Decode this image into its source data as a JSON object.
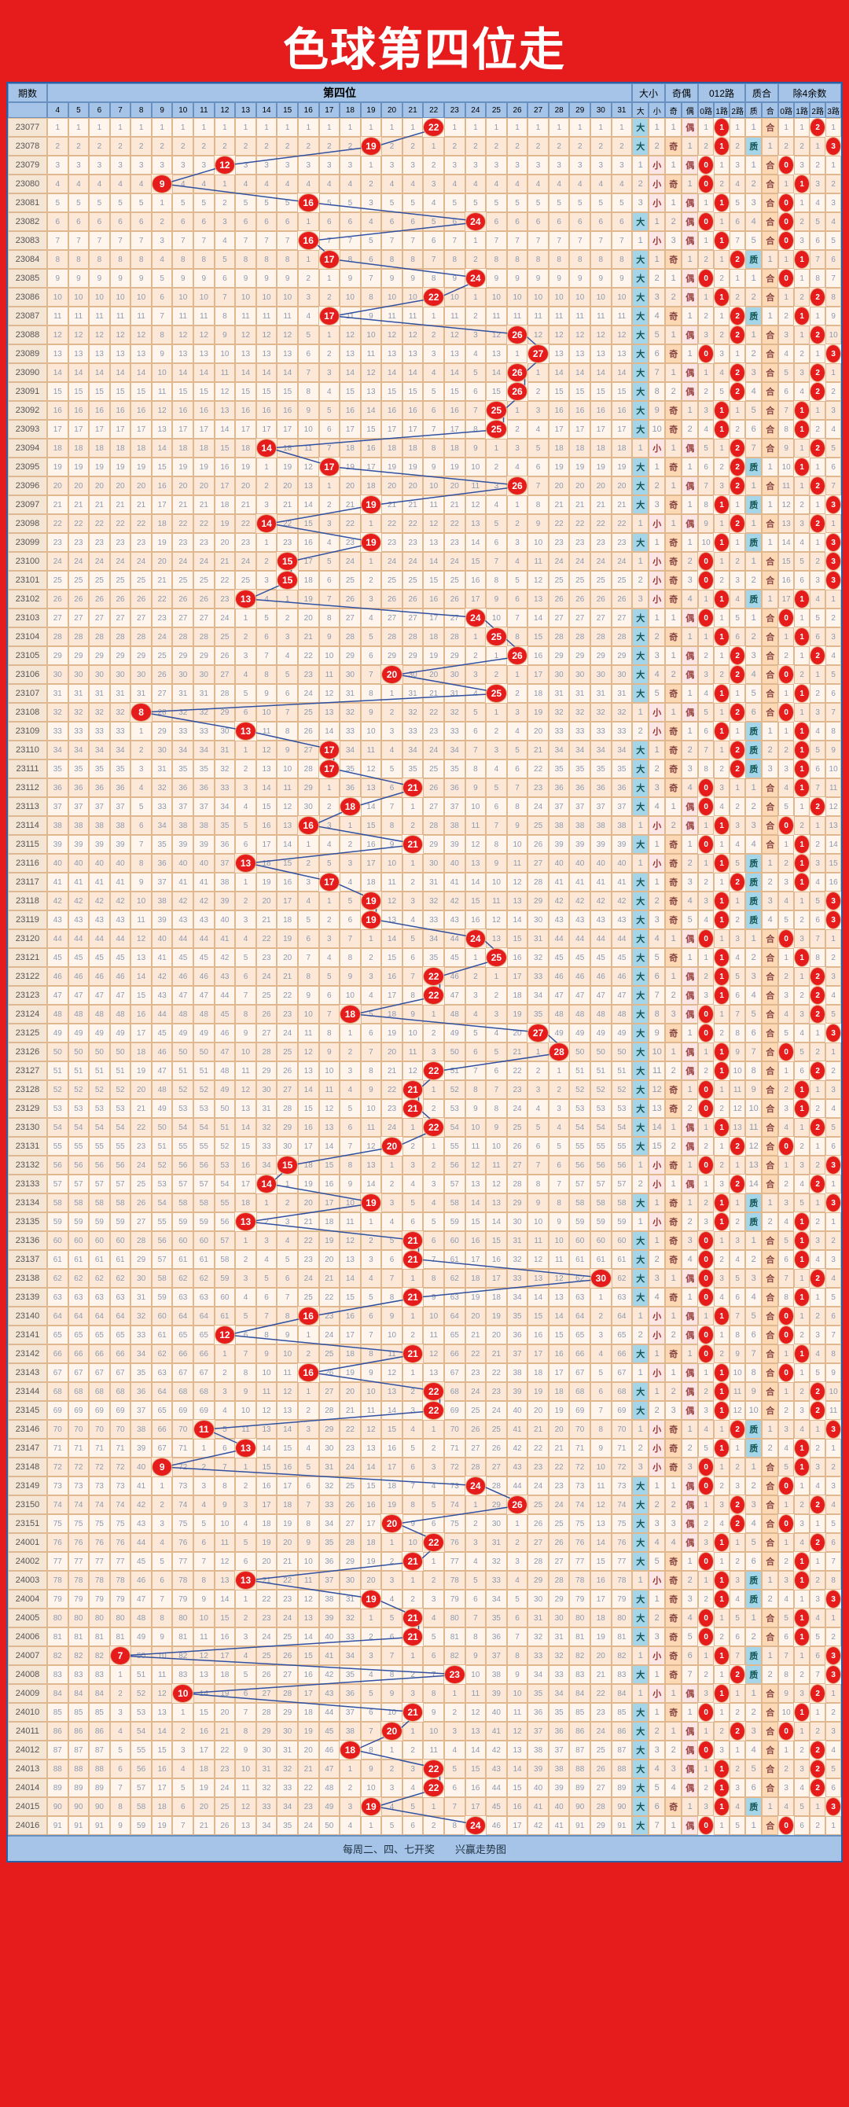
{
  "title": "色球第四位走",
  "headers": {
    "issue": "期数",
    "position": "第四位",
    "daxiao": "大小",
    "jiou": "奇偶",
    "r012": "012路",
    "zhihe": "质合",
    "mod4": "除4余数",
    "nums_start": 4,
    "nums_end": 31,
    "dx_labels": [
      "大",
      "小"
    ],
    "jo_labels": [
      "奇",
      "偶"
    ],
    "r012_labels": [
      "0路",
      "1路",
      "2路"
    ],
    "zh_labels": [
      "质",
      "合"
    ],
    "m4_labels": [
      "0路",
      "1路",
      "2路",
      "3路"
    ]
  },
  "colors": {
    "bg": "#e61c1c",
    "header_bg": "#a5c4e8",
    "row_odd": "#fde8d8",
    "row_even": "#fff5ed",
    "hit": "#e61c1c",
    "dx_da": "#a5d5e8",
    "jo_ji": "#fcd8b5",
    "trend_line": "#3050a0"
  },
  "footer": "每周二、四、七开奖　　兴赢走势图",
  "primes": [
    2,
    3,
    5,
    7,
    11,
    13,
    17,
    19,
    23,
    29,
    31
  ],
  "rows": [
    {
      "i": "23077",
      "v": 22
    },
    {
      "i": "23078",
      "v": 19
    },
    {
      "i": "23079",
      "v": 12
    },
    {
      "i": "23080",
      "v": 9
    },
    {
      "i": "23081",
      "v": 16
    },
    {
      "i": "23082",
      "v": 24
    },
    {
      "i": "23083",
      "v": 16
    },
    {
      "i": "23084",
      "v": 17
    },
    {
      "i": "23085",
      "v": 24
    },
    {
      "i": "23086",
      "v": 22
    },
    {
      "i": "23087",
      "v": 17
    },
    {
      "i": "23088",
      "v": 26
    },
    {
      "i": "23089",
      "v": 27
    },
    {
      "i": "23090",
      "v": 26
    },
    {
      "i": "23091",
      "v": 26
    },
    {
      "i": "23092",
      "v": 25
    },
    {
      "i": "23093",
      "v": 25
    },
    {
      "i": "23094",
      "v": 14
    },
    {
      "i": "23095",
      "v": 17
    },
    {
      "i": "23096",
      "v": 26
    },
    {
      "i": "23097",
      "v": 19
    },
    {
      "i": "23098",
      "v": 14
    },
    {
      "i": "23099",
      "v": 19
    },
    {
      "i": "23100",
      "v": 15
    },
    {
      "i": "23101",
      "v": 15
    },
    {
      "i": "23102",
      "v": 13
    },
    {
      "i": "23103",
      "v": 24
    },
    {
      "i": "23104",
      "v": 25
    },
    {
      "i": "23105",
      "v": 26
    },
    {
      "i": "23106",
      "v": 20
    },
    {
      "i": "23107",
      "v": 25
    },
    {
      "i": "23108",
      "v": 8
    },
    {
      "i": "23109",
      "v": 13
    },
    {
      "i": "23110",
      "v": 17
    },
    {
      "i": "23111",
      "v": 17
    },
    {
      "i": "23112",
      "v": 21
    },
    {
      "i": "23113",
      "v": 18
    },
    {
      "i": "23114",
      "v": 16
    },
    {
      "i": "23115",
      "v": 21
    },
    {
      "i": "23116",
      "v": 13
    },
    {
      "i": "23117",
      "v": 17
    },
    {
      "i": "23118",
      "v": 19
    },
    {
      "i": "23119",
      "v": 19
    },
    {
      "i": "23120",
      "v": 24
    },
    {
      "i": "23121",
      "v": 25
    },
    {
      "i": "23122",
      "v": 22
    },
    {
      "i": "23123",
      "v": 22
    },
    {
      "i": "23124",
      "v": 18
    },
    {
      "i": "23125",
      "v": 27
    },
    {
      "i": "23126",
      "v": 28
    },
    {
      "i": "23127",
      "v": 22
    },
    {
      "i": "23128",
      "v": 21
    },
    {
      "i": "23129",
      "v": 21
    },
    {
      "i": "23130",
      "v": 22
    },
    {
      "i": "23131",
      "v": 20
    },
    {
      "i": "23132",
      "v": 15
    },
    {
      "i": "23133",
      "v": 14
    },
    {
      "i": "23134",
      "v": 19
    },
    {
      "i": "23135",
      "v": 13
    },
    {
      "i": "23136",
      "v": 21
    },
    {
      "i": "23137",
      "v": 21
    },
    {
      "i": "23138",
      "v": 30
    },
    {
      "i": "23139",
      "v": 21
    },
    {
      "i": "23140",
      "v": 16
    },
    {
      "i": "23141",
      "v": 12
    },
    {
      "i": "23142",
      "v": 21
    },
    {
      "i": "23143",
      "v": 16
    },
    {
      "i": "23144",
      "v": 22
    },
    {
      "i": "23145",
      "v": 22
    },
    {
      "i": "23146",
      "v": 11
    },
    {
      "i": "23147",
      "v": 13
    },
    {
      "i": "23148",
      "v": 9
    },
    {
      "i": "23149",
      "v": 24
    },
    {
      "i": "23150",
      "v": 26
    },
    {
      "i": "23151",
      "v": 20
    },
    {
      "i": "24001",
      "v": 22
    },
    {
      "i": "24002",
      "v": 21
    },
    {
      "i": "24003",
      "v": 13
    },
    {
      "i": "24004",
      "v": 19
    },
    {
      "i": "24005",
      "v": 21
    },
    {
      "i": "24006",
      "v": 21
    },
    {
      "i": "24007",
      "v": 7
    },
    {
      "i": "24008",
      "v": 23
    },
    {
      "i": "24009",
      "v": 10
    },
    {
      "i": "24010",
      "v": 21
    },
    {
      "i": "24011",
      "v": 20
    },
    {
      "i": "24012",
      "v": 18
    },
    {
      "i": "24013",
      "v": 22
    },
    {
      "i": "24014",
      "v": 22
    },
    {
      "i": "24015",
      "v": 19
    },
    {
      "i": "24016",
      "v": 24
    }
  ]
}
